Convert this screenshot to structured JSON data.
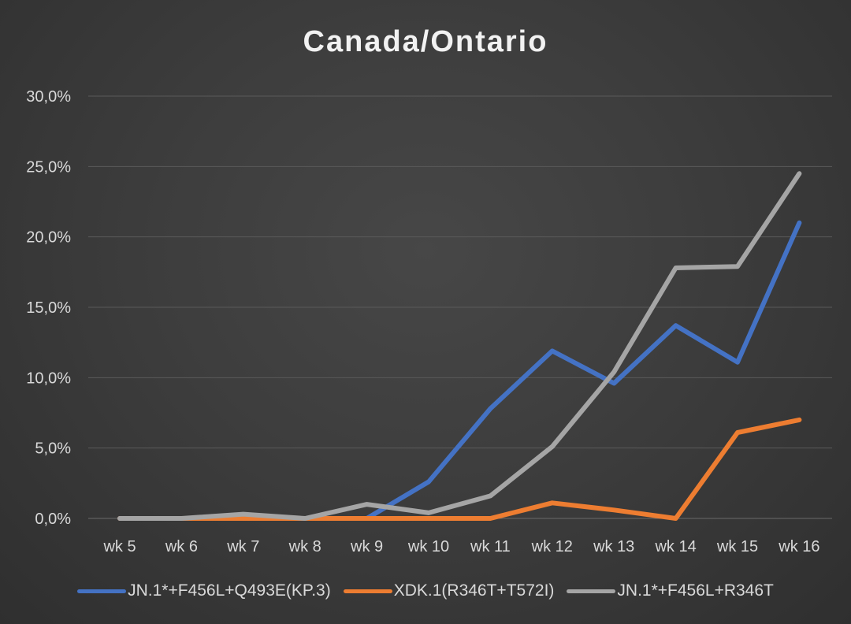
{
  "chart_data": {
    "type": "line",
    "title": "Canada/Ontario",
    "xlabel": "",
    "ylabel": "",
    "categories": [
      "wk 5",
      "wk 6",
      "wk 7",
      "wk 8",
      "wk 9",
      "wk 10",
      "wk 11",
      "wk 12",
      "wk 13",
      "wk 14",
      "wk 15",
      "wk 16"
    ],
    "y_ticks": [
      "0,0%",
      "5,0%",
      "10,0%",
      "15,0%",
      "20,0%",
      "25,0%",
      "30,0%"
    ],
    "ylim": [
      0,
      30
    ],
    "grid": true,
    "legend_position": "bottom",
    "series": [
      {
        "name": "JN.1*+F456L+Q493E(KP.3)",
        "color": "#4472c4",
        "values": [
          0,
          0,
          0,
          0,
          0,
          2.6,
          7.8,
          11.9,
          9.6,
          13.7,
          11.1,
          21.0
        ]
      },
      {
        "name": "XDK.1(R346T+T572I)",
        "color": "#ed7d31",
        "values": [
          0,
          0,
          0,
          0,
          0,
          0,
          0,
          1.1,
          0.6,
          0,
          6.1,
          7.0
        ]
      },
      {
        "name": "JN.1*+F456L+R346T",
        "color": "#a5a5a5",
        "values": [
          0,
          0,
          0.3,
          0,
          1.0,
          0.4,
          1.6,
          5.1,
          10.4,
          17.8,
          17.9,
          24.5
        ]
      }
    ]
  }
}
